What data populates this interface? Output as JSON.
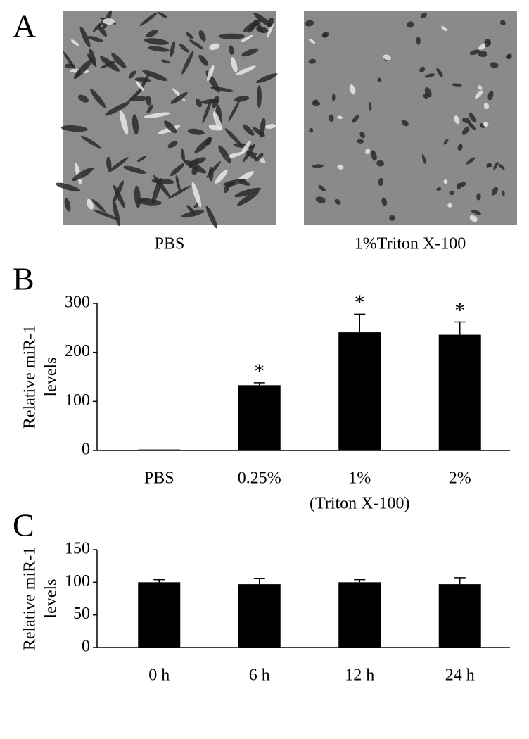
{
  "panels": {
    "a": {
      "label": "A",
      "captions": [
        "PBS",
        "1%Triton X-100"
      ]
    }
  },
  "chart_data": [
    {
      "type": "bar",
      "panel_label": "B",
      "ylabel": [
        "Relative miR-1",
        "levels"
      ],
      "categories": [
        "PBS",
        "0.25%",
        "1%",
        "2%"
      ],
      "values": [
        2,
        133,
        241,
        236
      ],
      "errors": [
        0,
        5,
        37,
        26
      ],
      "significance": [
        null,
        "*",
        "*",
        "*"
      ],
      "annotation": "(Triton X-100)",
      "color": "#000000",
      "ylim": [
        0,
        300
      ],
      "yticks": [
        0,
        100,
        200,
        300
      ],
      "grid": false
    },
    {
      "type": "bar",
      "panel_label": "C",
      "ylabel": [
        "Relative miR-1",
        "levels"
      ],
      "categories": [
        "0 h",
        "6 h",
        "12 h",
        "24 h"
      ],
      "values": [
        100,
        97,
        100,
        97
      ],
      "errors": [
        4,
        9,
        4,
        10
      ],
      "color": "#000000",
      "ylim": [
        0,
        150
      ],
      "yticks": [
        0,
        50,
        100,
        150
      ],
      "grid": false
    }
  ]
}
